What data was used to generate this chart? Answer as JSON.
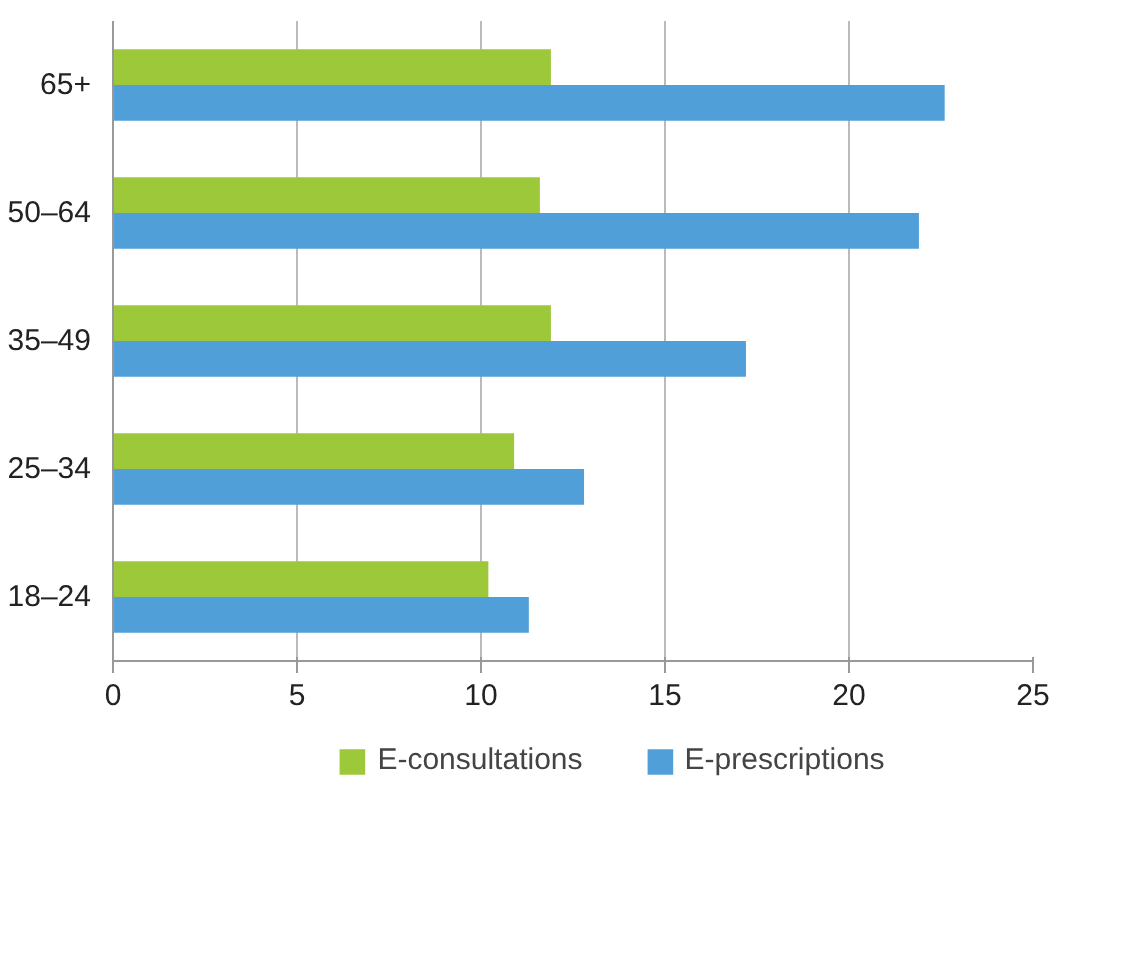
{
  "chart_data": {
    "type": "bar",
    "orientation": "horizontal",
    "categories": [
      "65+",
      "50–64",
      "35–49",
      "25–34",
      "18–24"
    ],
    "series": [
      {
        "name": "E-consultations",
        "color": "#9dc83a",
        "values": [
          11.9,
          11.6,
          11.9,
          10.9,
          10.2
        ]
      },
      {
        "name": "E-prescriptions",
        "color": "#519fd8",
        "values": [
          22.6,
          21.9,
          17.2,
          12.8,
          11.3
        ]
      }
    ],
    "xlim": [
      0,
      25
    ],
    "xticks": [
      0,
      5,
      10,
      15,
      20,
      25
    ],
    "grid": "x",
    "legend": "bottom"
  }
}
